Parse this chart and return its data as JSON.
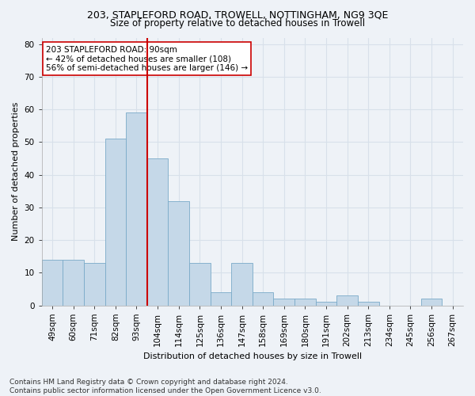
{
  "title1": "203, STAPLEFORD ROAD, TROWELL, NOTTINGHAM, NG9 3QE",
  "title2": "Size of property relative to detached houses in Trowell",
  "xlabel": "Distribution of detached houses by size in Trowell",
  "ylabel": "Number of detached properties",
  "categories": [
    "49sqm",
    "60sqm",
    "71sqm",
    "82sqm",
    "93sqm",
    "104sqm",
    "114sqm",
    "125sqm",
    "136sqm",
    "147sqm",
    "158sqm",
    "169sqm",
    "180sqm",
    "191sqm",
    "202sqm",
    "213sqm",
    "234sqm",
    "245sqm",
    "256sqm",
    "267sqm"
  ],
  "values": [
    14,
    14,
    13,
    51,
    59,
    45,
    32,
    13,
    4,
    13,
    4,
    2,
    2,
    1,
    3,
    1,
    0,
    0,
    2,
    0
  ],
  "bar_color": "#c5d8e8",
  "bar_edgecolor": "#7aaac8",
  "vline_x": 4.5,
  "vline_color": "#cc0000",
  "annotation_text": "203 STAPLEFORD ROAD: 90sqm\n← 42% of detached houses are smaller (108)\n56% of semi-detached houses are larger (146) →",
  "annotation_box_color": "#ffffff",
  "annotation_box_edgecolor": "#cc0000",
  "ylim": [
    0,
    82
  ],
  "yticks": [
    0,
    10,
    20,
    30,
    40,
    50,
    60,
    70,
    80
  ],
  "footnote": "Contains HM Land Registry data © Crown copyright and database right 2024.\nContains public sector information licensed under the Open Government Licence v3.0.",
  "bg_color": "#eef2f7",
  "grid_color": "#d8e0ea",
  "title1_fontsize": 9,
  "title2_fontsize": 8.5,
  "axis_label_fontsize": 8,
  "tick_fontsize": 7.5,
  "footnote_fontsize": 6.5,
  "annotation_fontsize": 7.5
}
